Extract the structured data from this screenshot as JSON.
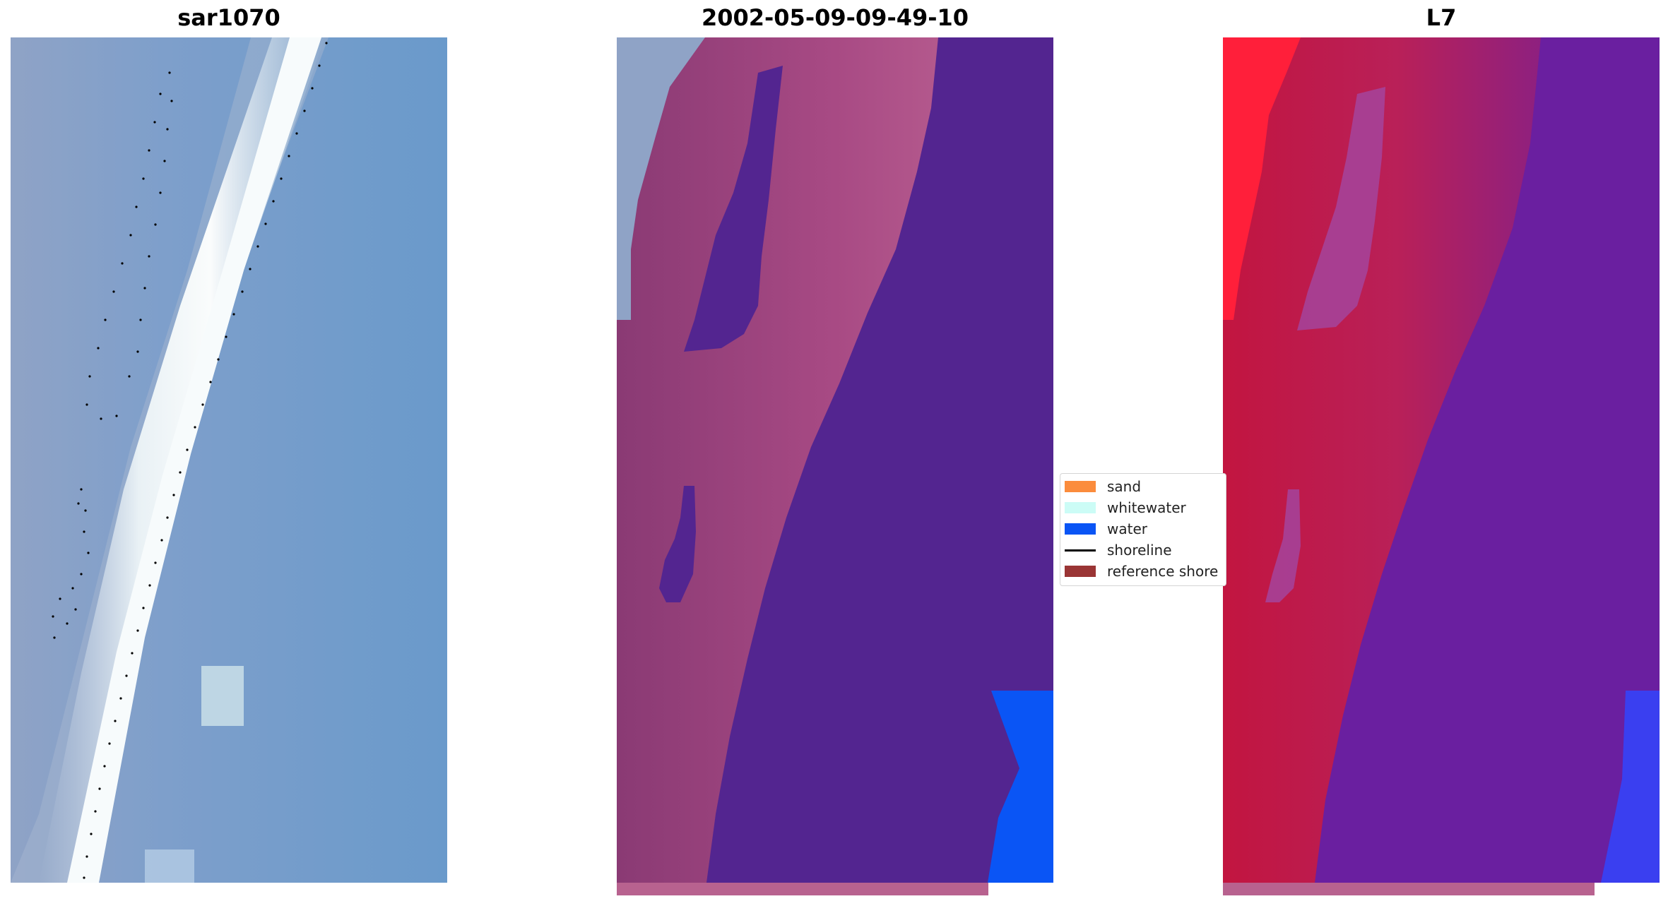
{
  "panels": {
    "left": {
      "title": "sar1070"
    },
    "middle": {
      "title": "2002-05-09-09-49-10"
    },
    "right": {
      "title": "L7"
    }
  },
  "legend": {
    "items": [
      {
        "label": "sand",
        "kind": "patch",
        "color": "#fb8c3c"
      },
      {
        "label": "whitewater",
        "kind": "patch",
        "color": "#ccfcf6"
      },
      {
        "label": "water",
        "kind": "patch",
        "color": "#0a55f5"
      },
      {
        "label": "shoreline",
        "kind": "line",
        "color": "#000000"
      },
      {
        "label": "reference shore",
        "kind": "patch",
        "color": "#9a3535"
      }
    ]
  },
  "colors": {
    "sea_blue": "#6b9ccb",
    "surf_white": "#eef6f8",
    "class_purple": "#532590",
    "class_pink": "#b8628f",
    "class_water": "#0a55f5",
    "index_red": "#c4173f",
    "index_violet": "#6a1fa0"
  }
}
